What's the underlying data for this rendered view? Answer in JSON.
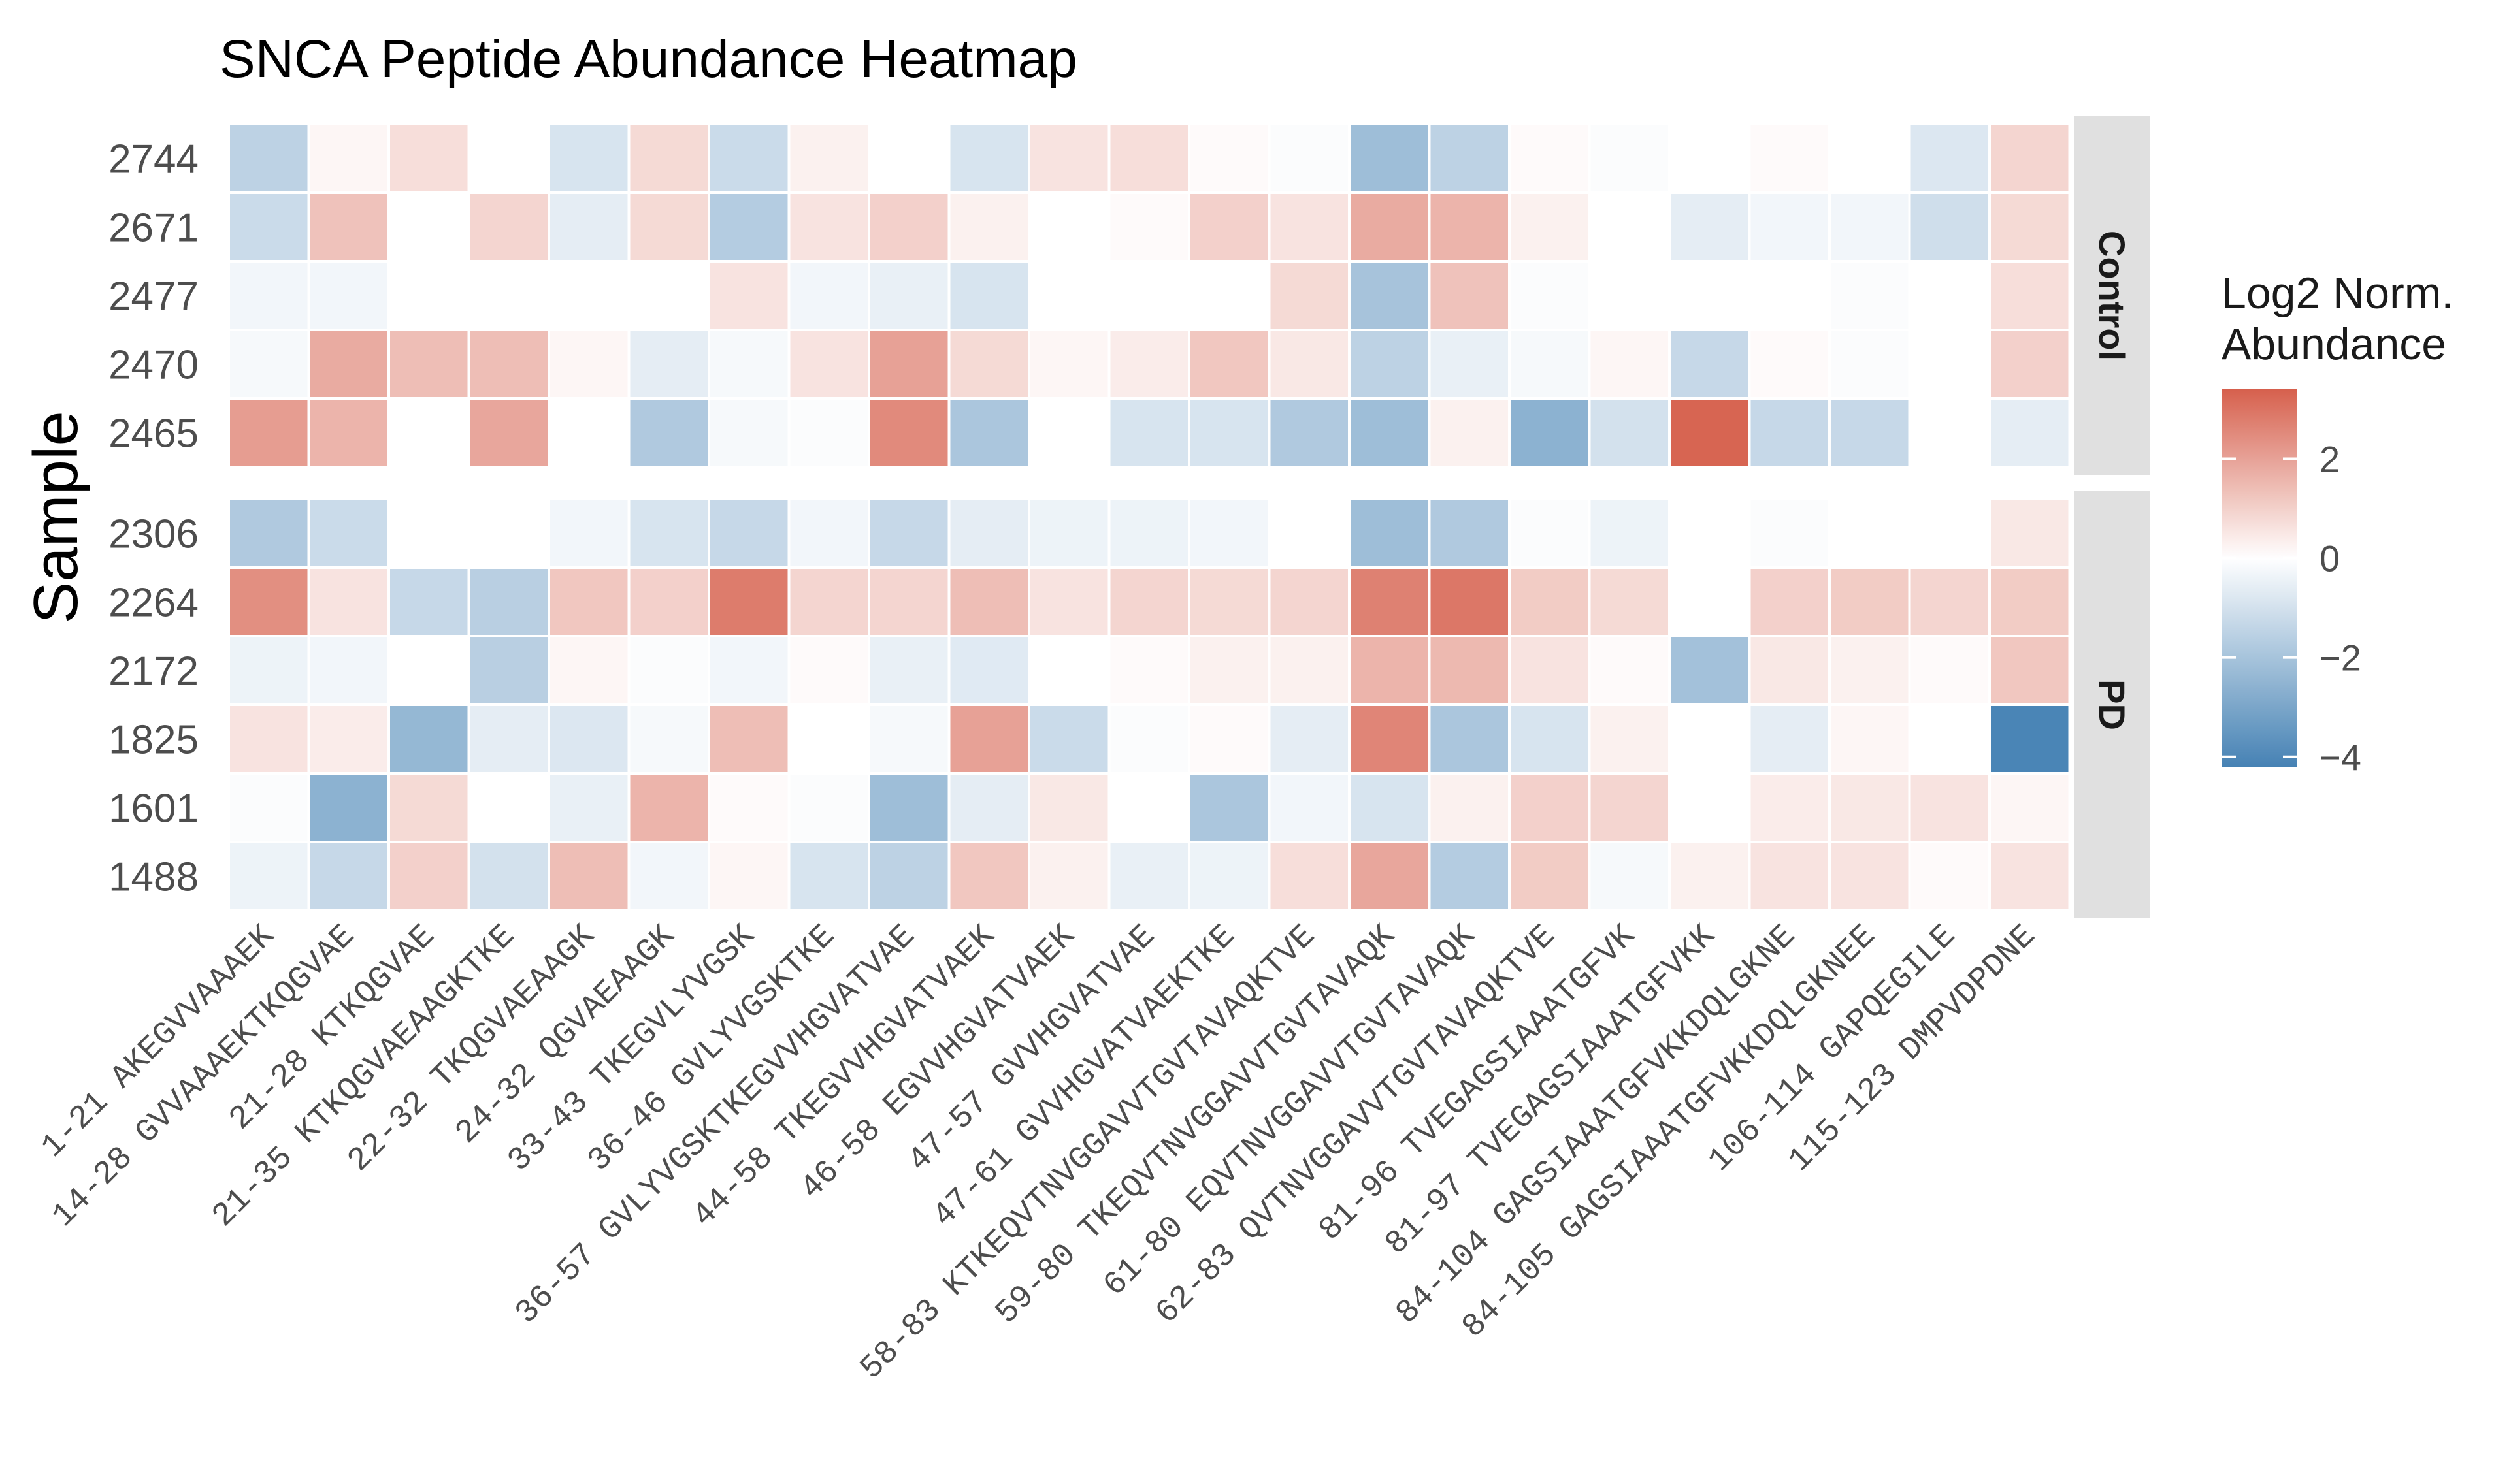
{
  "chart_data": {
    "type": "heatmap",
    "title": "SNCA Peptide Abundance Heatmap",
    "xlabel": "",
    "ylabel": "Sample",
    "peptides": [
      "1-21  AKEGVVAAAEK",
      "14-28  GVVAAAEKTKQGVAE",
      "21-28  KTKQGVAE",
      "21-35  KTKQGVAEAAGKTKE",
      "22-32  TKQGVAEAAGK",
      "24-32  QGVAEAAGK",
      "33-43  TKEGVLYVGSK",
      "36-46  GVLYVGSKTKE",
      "36-57  GVLYVGSKTKEGVVHGVATVAE",
      "44-58  TKEGVVHGVATVAEK",
      "46-58  EGVVHGVATVAEK",
      "47-57  GVVHGVATVAE",
      "47-61  GVVHGVATVAEKTKE",
      "58-83  KTKEQVTNVGGAVVTGVTAVAQKTVE",
      "59-80  TKEQVTNVGGAVVTGVTAVAQK",
      "61-80  EQVTNVGGAVVTGVTAVAQK",
      "62-83  QVTNVGGAVVTGVTAVAQKTVE",
      "81-96  TVEGAGSIAAATGFVK",
      "81-97  TVEGAGSIAAATGFVKK",
      "84-104  GAGSIAAATGFVKKDQLGKNE",
      "84-105  GAGSIAAATGFVKKDQLGKNEE",
      "106-114  GAPQEGILE",
      "115-123  DMPVDPDNE"
    ],
    "facets": [
      {
        "name": "Control",
        "samples": [
          "2744",
          "2671",
          "2477",
          "2470",
          "2465"
        ],
        "values": [
          [
            -1.5,
            0.2,
            0.7,
            null,
            -0.9,
            0.8,
            -1.2,
            0.3,
            null,
            -0.9,
            0.6,
            0.7,
            0.1,
            -0.1,
            -2.2,
            -1.5,
            0.1,
            -0.1,
            null,
            0.1,
            null,
            -0.8,
            0.9
          ],
          [
            -1.2,
            1.3,
            null,
            0.9,
            -0.6,
            0.8,
            -1.7,
            0.6,
            1.0,
            0.3,
            0.0,
            0.1,
            1.0,
            0.6,
            1.8,
            1.6,
            0.3,
            null,
            -0.6,
            -0.3,
            -0.3,
            -1.1,
            0.8
          ],
          [
            -0.3,
            -0.3,
            null,
            null,
            null,
            null,
            0.6,
            -0.3,
            -0.5,
            -0.9,
            null,
            null,
            null,
            0.8,
            -2.0,
            1.3,
            -0.1,
            null,
            null,
            null,
            -0.1,
            null,
            0.7
          ],
          [
            -0.2,
            1.8,
            1.4,
            1.4,
            0.2,
            -0.6,
            -0.2,
            0.6,
            2.0,
            0.8,
            0.2,
            0.4,
            1.2,
            0.5,
            -1.5,
            -0.5,
            -0.2,
            0.2,
            -1.3,
            0.1,
            -0.1,
            null,
            1.0
          ],
          [
            2.1,
            1.6,
            null,
            1.9,
            null,
            -1.8,
            -0.2,
            -0.1,
            2.5,
            -1.9,
            null,
            -0.9,
            -0.9,
            -1.8,
            -2.2,
            0.3,
            -2.6,
            -1.0,
            3.3,
            -1.3,
            -1.3,
            null,
            -0.6
          ]
        ]
      },
      {
        "name": "PD",
        "samples": [
          "2306",
          "2264",
          "2172",
          "1825",
          "1601",
          "1488"
        ],
        "values": [
          [
            -1.8,
            -1.2,
            null,
            null,
            -0.3,
            -0.9,
            -1.3,
            -0.3,
            -1.3,
            -0.6,
            -0.4,
            -0.4,
            -0.3,
            null,
            -2.2,
            -1.8,
            -0.1,
            -0.4,
            null,
            -0.1,
            null,
            null,
            0.5
          ],
          [
            2.4,
            0.6,
            -1.3,
            -1.6,
            1.2,
            1.0,
            2.8,
            0.9,
            0.9,
            1.4,
            0.6,
            0.9,
            0.8,
            0.9,
            2.7,
            2.9,
            1.1,
            0.8,
            null,
            1.0,
            1.1,
            0.9,
            1.1
          ],
          [
            -0.4,
            -0.3,
            null,
            -1.6,
            0.2,
            -0.1,
            -0.3,
            0.1,
            -0.5,
            -0.7,
            null,
            0.1,
            0.3,
            0.3,
            1.6,
            1.5,
            0.6,
            0.1,
            -2.1,
            0.5,
            0.3,
            0.1,
            1.2
          ],
          [
            0.6,
            0.4,
            -2.4,
            -0.6,
            -0.8,
            -0.2,
            1.4,
            null,
            -0.2,
            2.0,
            -1.2,
            -0.1,
            0.1,
            -0.6,
            2.6,
            -1.9,
            -0.9,
            0.3,
            null,
            -0.6,
            0.2,
            null,
            -4.1
          ],
          [
            -0.1,
            -2.6,
            0.8,
            null,
            -0.5,
            1.6,
            0.1,
            -0.1,
            -2.2,
            -0.6,
            0.5,
            null,
            -1.9,
            -0.3,
            -0.9,
            0.3,
            1.0,
            0.9,
            null,
            0.4,
            0.5,
            0.6,
            0.2
          ],
          [
            -0.4,
            -1.3,
            1.0,
            -1.0,
            1.4,
            -0.3,
            0.2,
            -0.9,
            -1.5,
            1.2,
            0.3,
            -0.5,
            -0.4,
            0.7,
            1.9,
            -1.7,
            1.1,
            -0.2,
            0.3,
            0.6,
            0.6,
            0.1,
            0.6
          ]
        ]
      }
    ],
    "legend": {
      "title_line1": "Log2 Norm.",
      "title_line2": "Abundance",
      "ticks": [
        2,
        0,
        -2,
        -4
      ],
      "tick_labels": [
        "2",
        "0",
        "−2",
        "−4"
      ],
      "range": [
        -4.2,
        3.4
      ],
      "low_color": "#4682b4",
      "mid_color": "#ffffff",
      "high_color": "#d6604d",
      "na_color": "#ffffff",
      "placement": "right"
    },
    "grid": false
  }
}
